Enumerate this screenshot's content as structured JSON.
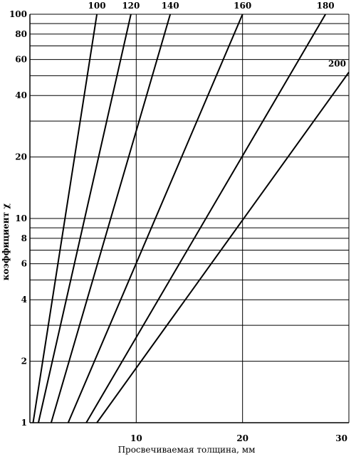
{
  "chart_data": {
    "type": "line",
    "xlabel": "Просвечиваемая толщина, мм",
    "ylabel": "коэффициент χ",
    "xlim": [
      0,
      30
    ],
    "ylim": [
      1,
      100
    ],
    "yscale": "log",
    "grid": true,
    "x_ticks": [
      10,
      20,
      30
    ],
    "y_ticks": [
      1,
      2,
      4,
      6,
      8,
      10,
      20,
      40,
      60,
      80,
      100
    ],
    "series": [
      {
        "name": "100",
        "points": [
          [
            0.3,
            1
          ],
          [
            6.3,
            100
          ]
        ]
      },
      {
        "name": "120",
        "points": [
          [
            0.8,
            1
          ],
          [
            9.5,
            100
          ]
        ]
      },
      {
        "name": "140",
        "points": [
          [
            2.0,
            1
          ],
          [
            13.2,
            100
          ]
        ]
      },
      {
        "name": "160",
        "points": [
          [
            3.6,
            1
          ],
          [
            20.0,
            100
          ]
        ]
      },
      {
        "name": "180",
        "points": [
          [
            5.3,
            1
          ],
          [
            27.8,
            100
          ]
        ]
      },
      {
        "name": "200",
        "points": [
          [
            6.3,
            1
          ],
          [
            30.0,
            52
          ]
        ]
      }
    ]
  }
}
